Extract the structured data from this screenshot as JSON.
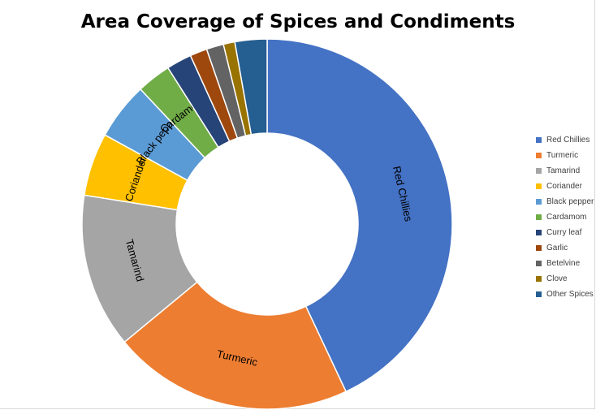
{
  "chart_data": {
    "type": "pie",
    "variant": "donut",
    "title": "Area Coverage of Spices and Condiments",
    "categories": [
      "Red Chillies",
      "Turmeric",
      "Tamarind",
      "Coriander",
      "Black pepper",
      "Cardamom",
      "Curry leaf",
      "Garlic",
      "Betelvine",
      "Clove",
      "Other Spices"
    ],
    "values": [
      43.0,
      21.0,
      13.5,
      5.5,
      5.0,
      3.0,
      2.2,
      1.5,
      1.5,
      1.0,
      2.8
    ],
    "colors": [
      "#4472C4",
      "#ED7D31",
      "#A5A5A5",
      "#FFC000",
      "#5B9BD5",
      "#70AD47",
      "#264478",
      "#9E480E",
      "#636363",
      "#997300",
      "#255E91"
    ],
    "slice_labels": [
      "Red Chillies",
      "Turmeric",
      "Tamarind",
      "Coriander",
      "Black pepper",
      "Cardamom",
      "",
      "",
      "",
      "",
      ""
    ],
    "legend_position": "right"
  }
}
